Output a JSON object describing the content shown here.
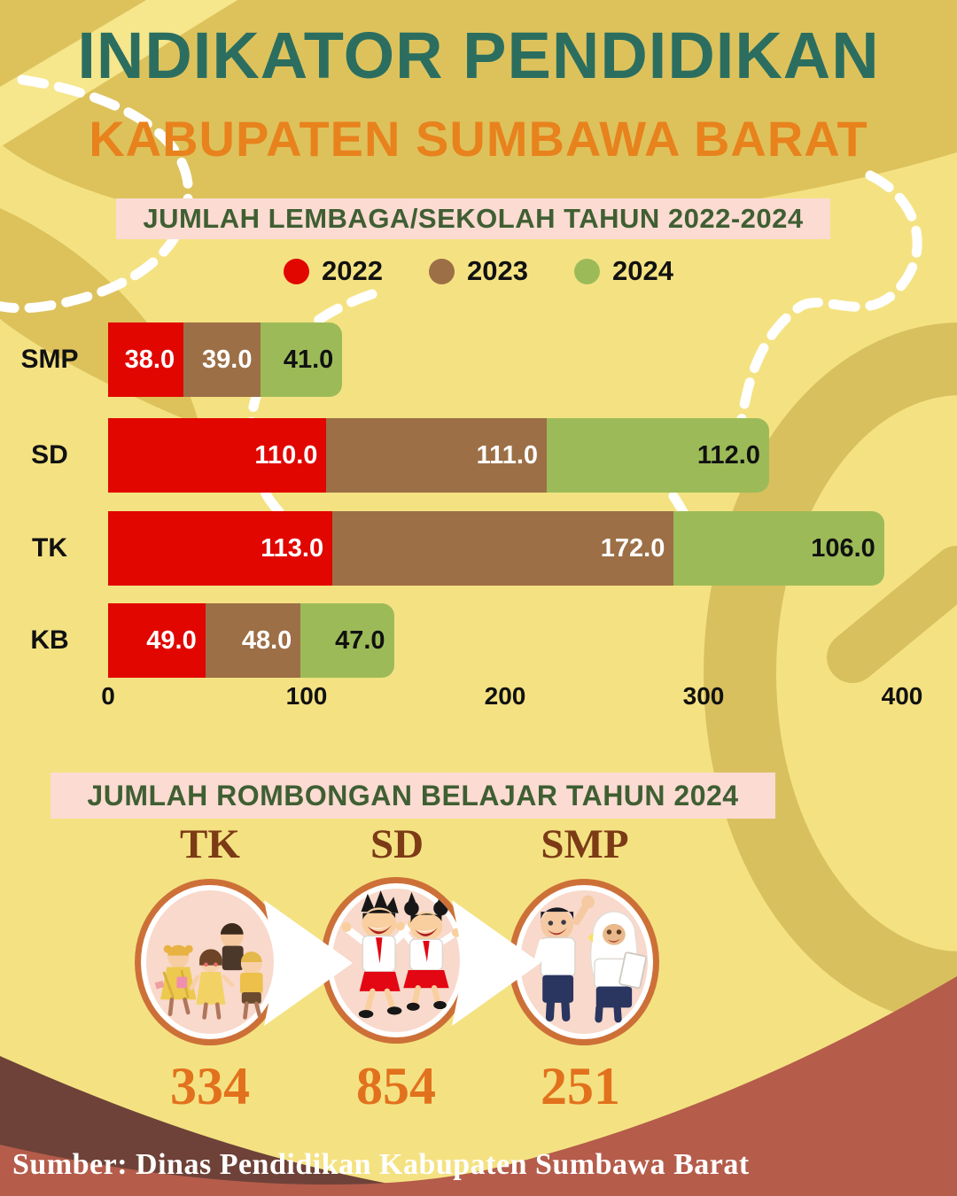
{
  "page": {
    "title": "INDIKATOR PENDIDIKAN",
    "subtitle": "KABUPATEN SUMBAWA BARAT"
  },
  "section_lembaga": {
    "banner": "JUMLAH LEMBAGA/SEKOLAH TAHUN 2022-2024"
  },
  "chart_data": {
    "type": "bar",
    "orientation": "horizontal",
    "stacked": true,
    "title": "JUMLAH LEMBAGA/SEKOLAH TAHUN 2022-2024",
    "categories": [
      "SMP",
      "SD",
      "TK",
      "KB"
    ],
    "series": [
      {
        "name": "2022",
        "color": "#e10600",
        "label_color": "#ffffff",
        "values": [
          38.0,
          110.0,
          113.0,
          49.0
        ],
        "display": [
          "38.0",
          "110.0",
          "113.0",
          "49.0"
        ]
      },
      {
        "name": "2023",
        "color": "#9c6f46",
        "label_color": "#ffffff",
        "values": [
          39.0,
          111.0,
          172.0,
          48.0
        ],
        "display": [
          "39.0",
          "111.0",
          "172.0",
          "48.0"
        ]
      },
      {
        "name": "2024",
        "color": "#9cbb58",
        "label_color": "#111111",
        "values": [
          41.0,
          112.0,
          106.0,
          47.0
        ],
        "display": [
          "41.0",
          "112.0",
          "106.0",
          "47.0"
        ]
      }
    ],
    "x_axis": {
      "ticks": [
        "0",
        "100",
        "200",
        "300",
        "400"
      ],
      "max": 400
    },
    "legend": [
      "2022",
      "2023",
      "2024"
    ],
    "legend_position": "top",
    "grid": false
  },
  "section_rombel": {
    "banner": "JUMLAH ROMBONGAN BELAJAR TAHUN 2024",
    "groups": [
      {
        "label": "TK",
        "value": "334",
        "illustration": "kindergarten-children"
      },
      {
        "label": "SD",
        "value": "854",
        "illustration": "elementary-students"
      },
      {
        "label": "SMP",
        "value": "251",
        "illustration": "junior-high-students"
      }
    ]
  },
  "footer": {
    "source": "Sumber: Dinas Pendidikan Kabupaten Sumbawa Barat"
  },
  "colors": {
    "background": "#f4e282",
    "background_accent": "#ddc25c",
    "banner_bg": "#fcdbd2",
    "banner_text": "#3f5f33",
    "title": "#2b6e60",
    "subtitle": "#e8821d",
    "bar_2022": "#e10600",
    "bar_2023": "#9c6f46",
    "bar_2024": "#9cbb58",
    "circle_ring": "#cd7038",
    "circle_fill": "#f8d9cb",
    "group_label": "#7c3a16",
    "group_value": "#e2711d",
    "wave_dark": "#6e4238",
    "wave_light": "#b55c4b",
    "footer_text": "#ffffff"
  }
}
